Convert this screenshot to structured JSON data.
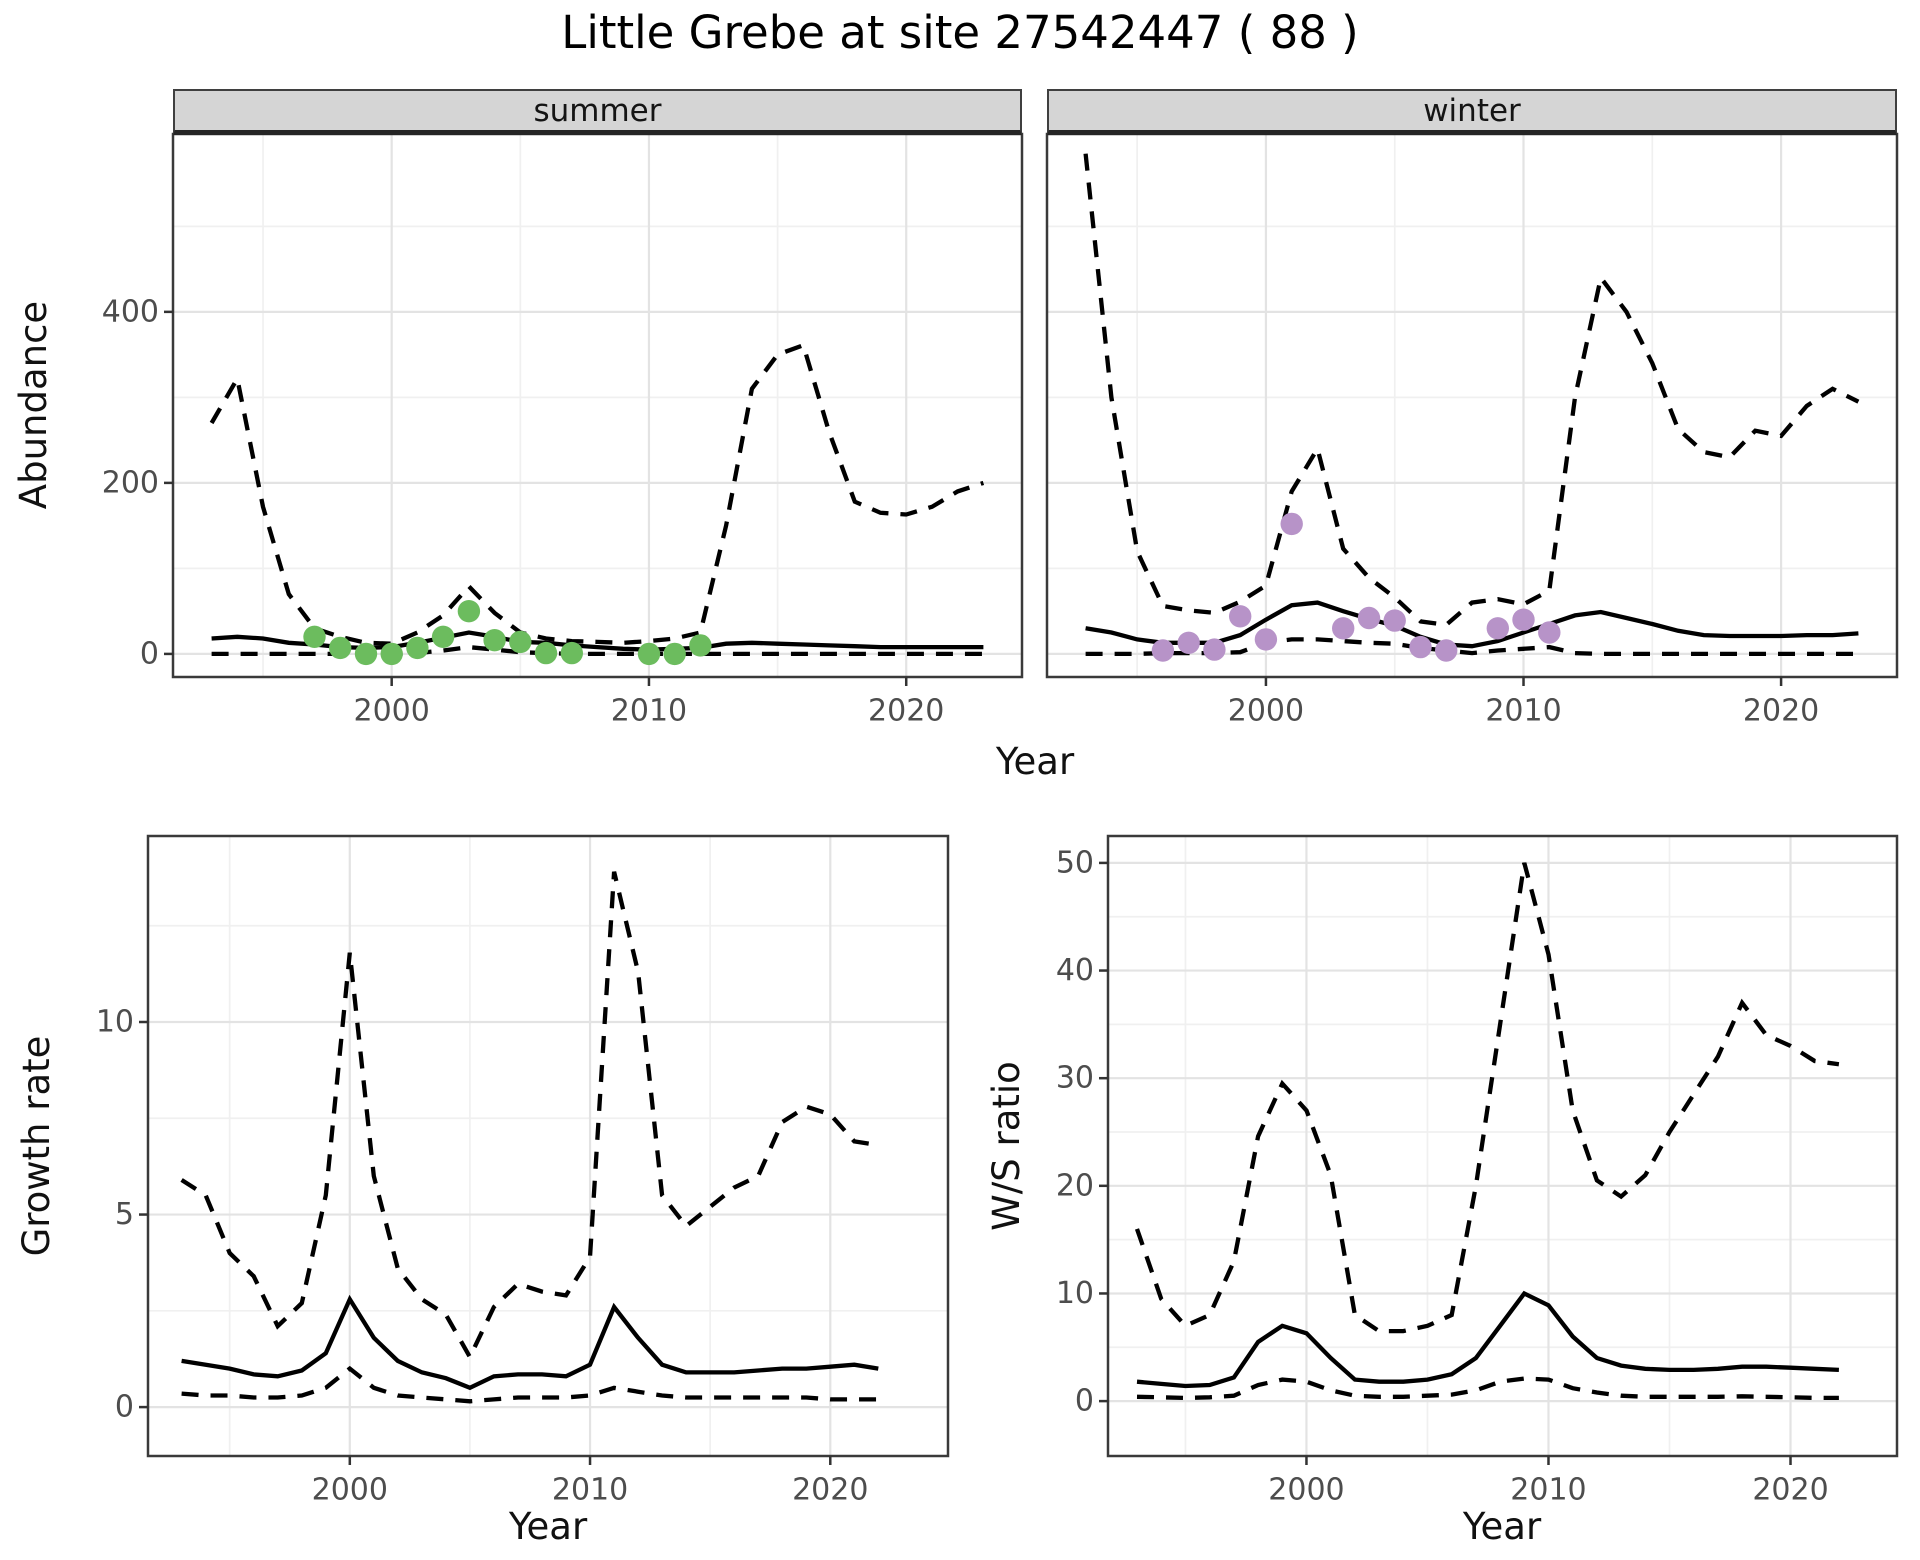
{
  "title": "Little Grebe at site 27542447 ( 88 )",
  "colors": {
    "summer_point": "#6CBC5E",
    "winter_point": "#B793C8",
    "line": "#000000",
    "grid_major": "#e3e3e3",
    "grid_minor": "#f0f0f0",
    "panel_border": "#3a3a3a",
    "strip_bg": "#d5d5d5",
    "tick_text": "#4d4d4d"
  },
  "chart_data": [
    {
      "id": "abundance_summer",
      "type": "line",
      "facet_label": "summer",
      "xlabel": "Year",
      "ylabel": "Abundance",
      "xlim": [
        1991.5,
        2024.5
      ],
      "ylim": [
        -27,
        608
      ],
      "xticks": [
        2000,
        2010,
        2020
      ],
      "yticks": [
        0,
        200,
        400
      ],
      "xminor": [
        1995,
        2005,
        2015
      ],
      "yminor": [
        100,
        300,
        500
      ],
      "x": [
        1993,
        1994,
        1995,
        1996,
        1997,
        1998,
        1999,
        2000,
        2001,
        2002,
        2003,
        2004,
        2005,
        2006,
        2007,
        2008,
        2009,
        2010,
        2011,
        2012,
        2013,
        2014,
        2015,
        2016,
        2017,
        2018,
        2019,
        2020,
        2021,
        2022,
        2023
      ],
      "series": [
        {
          "name": "median",
          "style": "solid",
          "values": [
            18,
            20,
            18,
            13,
            11,
            8,
            7,
            8,
            13,
            19,
            25,
            20,
            14,
            13,
            10,
            8,
            6,
            5,
            6,
            7,
            12,
            13,
            12,
            11,
            10,
            9,
            8,
            8,
            8,
            8,
            8
          ]
        },
        {
          "name": "upper_ci",
          "style": "dashed",
          "values": [
            270,
            322,
            172,
            70,
            30,
            20,
            13,
            12,
            25,
            45,
            79,
            48,
            25,
            18,
            15,
            14,
            13,
            15,
            18,
            25,
            150,
            310,
            350,
            361,
            260,
            178,
            165,
            163,
            172,
            190,
            200
          ]
        },
        {
          "name": "lower_ci",
          "style": "dashed",
          "values": [
            0,
            0,
            0,
            0,
            0,
            0,
            0,
            0,
            1,
            4,
            8,
            5,
            2,
            1,
            0,
            0,
            0,
            0,
            0,
            0,
            0,
            0,
            0,
            0,
            0,
            0,
            0,
            0,
            0,
            0,
            0
          ]
        }
      ],
      "observed_points": {
        "color_key": "summer_point",
        "x": [
          1997,
          1998,
          1999,
          2000,
          2001,
          2002,
          2003,
          2004,
          2005,
          2006,
          2007,
          2010,
          2011,
          2012
        ],
        "y": [
          20,
          7,
          0,
          0,
          7,
          20,
          50,
          16,
          14,
          1,
          1,
          0,
          0,
          10
        ]
      }
    },
    {
      "id": "abundance_winter",
      "type": "line",
      "facet_label": "winter",
      "xlabel": "Year",
      "ylabel": "Abundance",
      "xlim": [
        1991.5,
        2024.5
      ],
      "ylim": [
        -27,
        608
      ],
      "xticks": [
        2000,
        2010,
        2020
      ],
      "yticks": [
        0,
        200,
        400
      ],
      "xminor": [
        1995,
        2005,
        2015
      ],
      "yminor": [
        100,
        300,
        500
      ],
      "x": [
        1993,
        1994,
        1995,
        1996,
        1997,
        1998,
        1999,
        2000,
        2001,
        2002,
        2003,
        2004,
        2005,
        2006,
        2007,
        2008,
        2009,
        2010,
        2011,
        2012,
        2013,
        2014,
        2015,
        2016,
        2017,
        2018,
        2019,
        2020,
        2021,
        2022,
        2023
      ],
      "series": [
        {
          "name": "median",
          "style": "solid",
          "values": [
            30,
            25,
            17,
            13,
            13,
            13,
            22,
            40,
            57,
            60,
            50,
            41,
            33,
            20,
            11,
            9,
            15,
            25,
            35,
            45,
            49,
            42,
            35,
            27,
            22,
            21,
            21,
            21,
            22,
            22,
            24
          ]
        },
        {
          "name": "upper_ci",
          "style": "dashed",
          "values": [
            585,
            300,
            120,
            56,
            51,
            48,
            61,
            80,
            190,
            240,
            123,
            89,
            66,
            38,
            34,
            60,
            64,
            58,
            74,
            300,
            440,
            400,
            340,
            263,
            236,
            230,
            261,
            255,
            290,
            310,
            295
          ]
        },
        {
          "name": "lower_ci",
          "style": "dashed",
          "values": [
            0,
            0,
            0,
            1,
            1,
            1,
            2,
            13,
            17,
            17,
            15,
            13,
            12,
            7,
            4,
            1,
            4,
            6,
            8,
            1,
            0,
            0,
            0,
            0,
            0,
            0,
            0,
            0,
            0,
            0,
            0
          ]
        }
      ],
      "observed_points": {
        "color_key": "winter_point",
        "x": [
          1996,
          1997,
          1998,
          1999,
          2000,
          2001,
          2003,
          2004,
          2005,
          2006,
          2007,
          2009,
          2010,
          2011
        ],
        "y": [
          4,
          13,
          5,
          44,
          17,
          152,
          30,
          42,
          39,
          8,
          4,
          30,
          40,
          25
        ]
      }
    },
    {
      "id": "growth_rate",
      "type": "line",
      "facet_label": "",
      "xlabel": "Year",
      "ylabel": "Growth rate",
      "xlim": [
        1991.6,
        2024.9
      ],
      "ylim": [
        -1.27,
        14.83
      ],
      "xticks": [
        2000,
        2010,
        2020
      ],
      "yticks": [
        0,
        5,
        10
      ],
      "xminor": [
        1995,
        2005,
        2015
      ],
      "yminor": [
        2.5,
        7.5,
        12.5
      ],
      "x": [
        1993,
        1994,
        1995,
        1996,
        1997,
        1998,
        1999,
        2000,
        2001,
        2002,
        2003,
        2004,
        2005,
        2006,
        2007,
        2008,
        2009,
        2010,
        2011,
        2012,
        2013,
        2014,
        2015,
        2016,
        2017,
        2018,
        2019,
        2020,
        2021,
        2022
      ],
      "series": [
        {
          "name": "median",
          "style": "solid",
          "values": [
            1.2,
            1.1,
            1.0,
            0.85,
            0.8,
            0.95,
            1.4,
            2.8,
            1.8,
            1.2,
            0.9,
            0.75,
            0.5,
            0.8,
            0.85,
            0.85,
            0.8,
            1.1,
            2.6,
            1.8,
            1.1,
            0.9,
            0.9,
            0.9,
            0.95,
            1.0,
            1.0,
            1.05,
            1.1,
            1.0
          ]
        },
        {
          "name": "upper_ci",
          "style": "dashed",
          "values": [
            5.9,
            5.5,
            4.0,
            3.4,
            2.1,
            2.7,
            5.5,
            11.8,
            6.0,
            3.6,
            2.8,
            2.4,
            1.3,
            2.6,
            3.2,
            3.0,
            2.9,
            3.9,
            13.9,
            11.3,
            5.5,
            4.7,
            5.2,
            5.7,
            6.0,
            7.4,
            7.8,
            7.6,
            6.9,
            6.8
          ]
        },
        {
          "name": "lower_ci",
          "style": "dashed",
          "values": [
            0.35,
            0.3,
            0.3,
            0.25,
            0.25,
            0.3,
            0.5,
            1.0,
            0.5,
            0.3,
            0.25,
            0.2,
            0.15,
            0.2,
            0.25,
            0.25,
            0.25,
            0.3,
            0.5,
            0.4,
            0.3,
            0.25,
            0.25,
            0.25,
            0.25,
            0.25,
            0.25,
            0.2,
            0.2,
            0.2
          ]
        }
      ],
      "observed_points": {
        "color_key": "summer_point",
        "x": [],
        "y": []
      }
    },
    {
      "id": "ws_ratio",
      "type": "line",
      "facet_label": "",
      "xlabel": "Year",
      "ylabel": "W/S ratio",
      "xlim": [
        1991.8,
        2024.4
      ],
      "ylim": [
        -5.1,
        52.5
      ],
      "xticks": [
        2000,
        2010,
        2020
      ],
      "yticks": [
        0,
        10,
        20,
        30,
        40,
        50
      ],
      "xminor": [
        1995,
        2005,
        2015
      ],
      "yminor": [
        5,
        15,
        25,
        35,
        45
      ],
      "x": [
        1993,
        1994,
        1995,
        1996,
        1997,
        1998,
        1999,
        2000,
        2001,
        2002,
        2003,
        2004,
        2005,
        2006,
        2007,
        2008,
        2009,
        2010,
        2011,
        2012,
        2013,
        2014,
        2015,
        2016,
        2017,
        2018,
        2019,
        2020,
        2021,
        2022
      ],
      "series": [
        {
          "name": "median",
          "style": "solid",
          "values": [
            1.8,
            1.6,
            1.4,
            1.5,
            2.2,
            5.5,
            7.0,
            6.3,
            4.0,
            2.0,
            1.8,
            1.8,
            2.0,
            2.5,
            4.0,
            7.0,
            10.0,
            8.9,
            6.0,
            4.0,
            3.3,
            3.0,
            2.9,
            2.9,
            3.0,
            3.2,
            3.2,
            3.1,
            3.0,
            2.9
          ]
        },
        {
          "name": "upper_ci",
          "style": "dashed",
          "values": [
            16,
            9.5,
            7,
            8,
            13,
            24.6,
            29.5,
            27,
            21,
            8,
            6.5,
            6.5,
            7,
            8,
            20,
            35,
            50,
            41.5,
            27,
            20.5,
            19,
            21,
            25,
            28.5,
            32,
            37,
            34,
            33,
            31.6,
            31.3
          ]
        },
        {
          "name": "lower_ci",
          "style": "dashed",
          "values": [
            0.4,
            0.35,
            0.3,
            0.35,
            0.5,
            1.5,
            2.0,
            1.8,
            1.0,
            0.5,
            0.4,
            0.4,
            0.5,
            0.6,
            1.0,
            1.8,
            2.1,
            2.0,
            1.2,
            0.8,
            0.5,
            0.4,
            0.4,
            0.4,
            0.4,
            0.45,
            0.4,
            0.35,
            0.3,
            0.3
          ]
        }
      ],
      "observed_points": {
        "color_key": "winter_point",
        "x": [],
        "y": []
      }
    }
  ]
}
